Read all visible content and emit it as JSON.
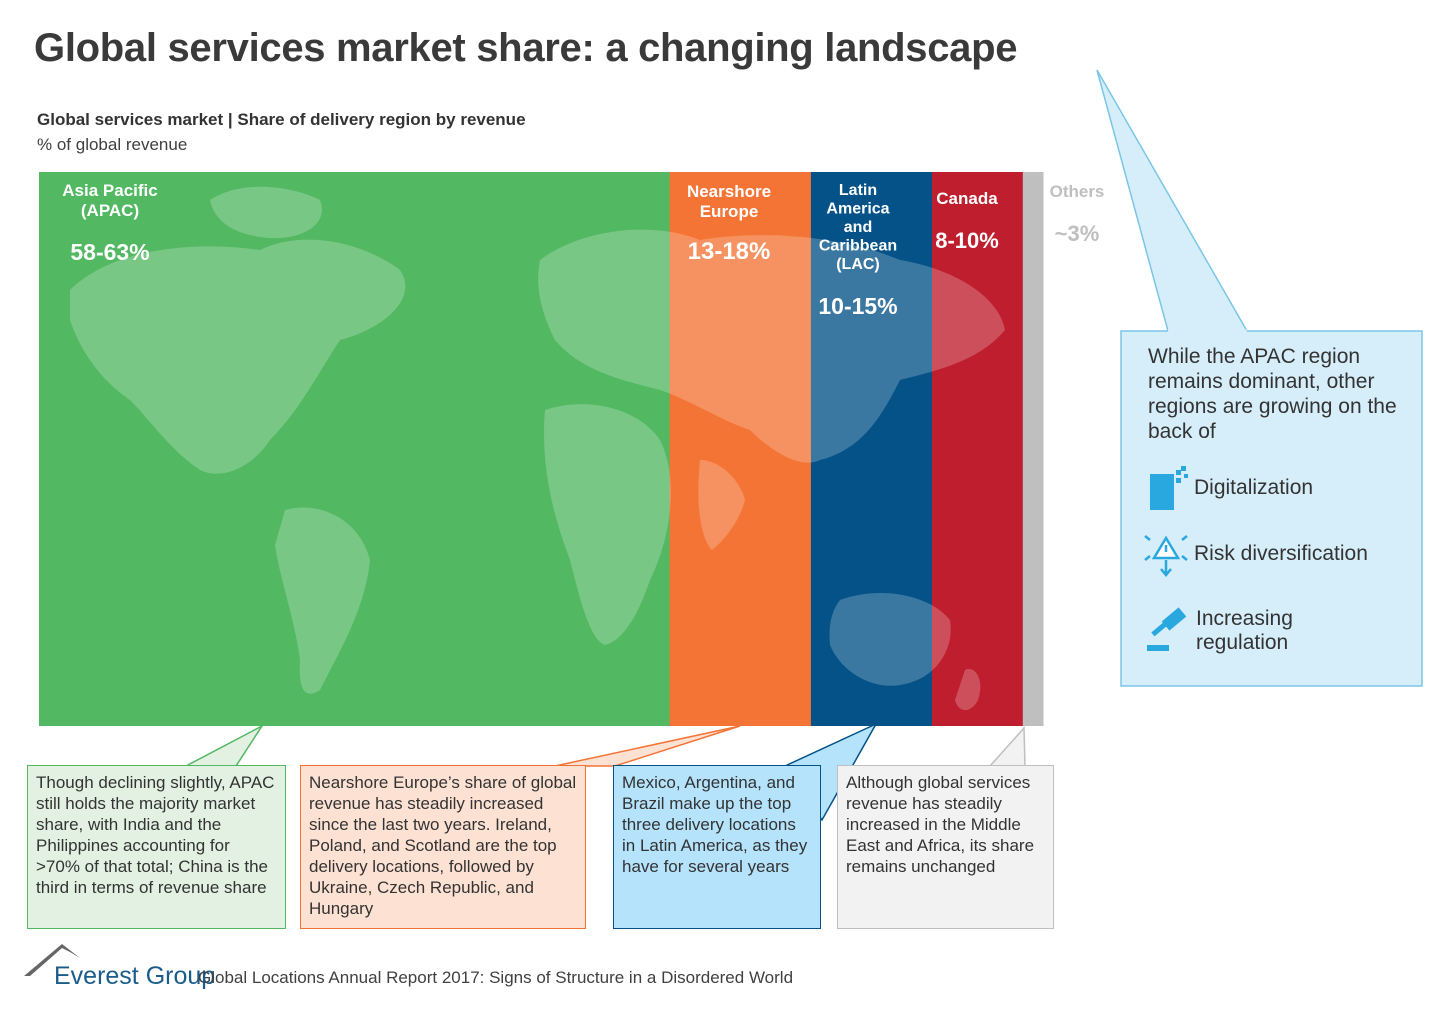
{
  "title": "Global services market share: a changing landscape",
  "subtitle": "Global services market | Share of delivery region by revenue",
  "unit": "% of global revenue",
  "chart_data": {
    "type": "bar",
    "layout": "stacked-horizontal-100",
    "categories": [
      "Asia Pacific (APAC)",
      "Nearshore Europe",
      "Latin America and Caribbean (LAC)",
      "Canada",
      "Others"
    ],
    "series": [
      {
        "name": "Share of global revenue (range)",
        "labels": [
          "58-63%",
          "13-18%",
          "10-15%",
          "8-10%",
          "~3%"
        ],
        "low": [
          58,
          13,
          10,
          8,
          3
        ],
        "high": [
          63,
          18,
          15,
          10,
          3
        ]
      }
    ],
    "segments": [
      {
        "name_lines": [
          "Asia Pacific",
          "(APAC)"
        ],
        "value_label": "58-63%",
        "color": "#52b862",
        "weight": 62.5
      },
      {
        "name_lines": [
          "Nearshore",
          "Europe"
        ],
        "value_label": "13-18%",
        "color": "#f47435",
        "weight": 14
      },
      {
        "name_lines": [
          "Latin",
          "America",
          "and",
          "Caribbean",
          "(LAC)"
        ],
        "value_label": "10-15%",
        "color": "#045287",
        "weight": 12
      },
      {
        "name_lines": [
          "Canada"
        ],
        "value_label": "8-10%",
        "color": "#bf1e2e",
        "weight": 9
      },
      {
        "name_lines": [
          "Others"
        ],
        "value_label": "~3%",
        "color": "#bfbfbf",
        "weight": 2
      }
    ]
  },
  "callouts": {
    "apac": "Though declining slightly, APAC still holds the majority market share, with India and the Philippines accounting for >70% of that total; China is the third in terms of revenue share",
    "europe": "Nearshore Europe’s share of global revenue has steadily increased since the last two years. Ireland, Poland, and Scotland are the top delivery locations, followed by Ukraine, Czech Republic, and Hungary",
    "lac": "Mexico, Argentina, and Brazil make up the top three delivery locations in Latin America, as they have for several years",
    "others": "Although global services revenue has steadily increased in the Middle East and Africa, its share remains unchanged"
  },
  "callout_colors": {
    "apac_fill": "#e2f1e1",
    "apac_border": "#52b862",
    "europe_fill": "#fde2d4",
    "europe_border": "#f47435",
    "lac_fill": "#b5e3fb",
    "lac_border": "#045287",
    "others_fill": "#f2f2f2",
    "others_border": "#bfbfbf"
  },
  "side_panel": {
    "intro": "While the APAC region remains dominant, other regions are growing on the back of",
    "drivers": [
      {
        "icon": "digitalization-icon",
        "label": "Digitalization"
      },
      {
        "icon": "risk-diversification-icon",
        "label": "Risk diversification"
      },
      {
        "icon": "gavel-icon",
        "label_lines": [
          "Increasing",
          "regulation"
        ]
      }
    ],
    "fill": "#d6eefa",
    "border": "#7ac6e6",
    "icon_color": "#29a8e0"
  },
  "footer": {
    "brand": "Everest Group",
    "report": "Global Locations Annual Report 2017: Signs of Structure in a Disordered World"
  }
}
